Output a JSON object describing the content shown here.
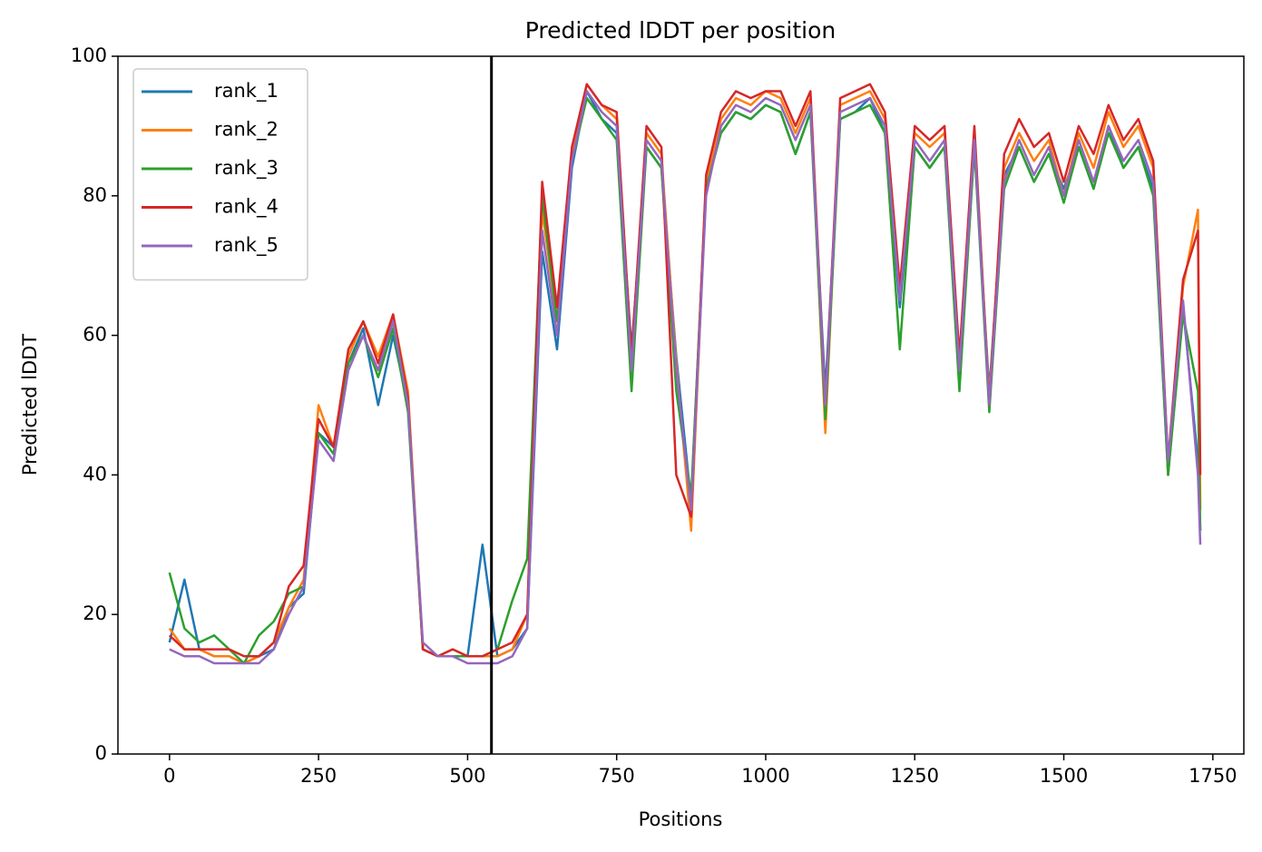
{
  "chart_data": {
    "type": "line",
    "title": "Predicted lDDT per position",
    "xlabel": "Positions",
    "ylabel": "Predicted lDDT",
    "x": [
      0,
      25,
      50,
      75,
      100,
      125,
      150,
      175,
      200,
      225,
      250,
      275,
      300,
      325,
      350,
      375,
      400,
      425,
      450,
      475,
      500,
      525,
      550,
      575,
      600,
      625,
      650,
      675,
      700,
      725,
      750,
      775,
      800,
      825,
      850,
      875,
      900,
      925,
      950,
      975,
      1000,
      1025,
      1050,
      1075,
      1100,
      1125,
      1150,
      1175,
      1200,
      1225,
      1250,
      1275,
      1300,
      1325,
      1350,
      1375,
      1400,
      1425,
      1450,
      1475,
      1500,
      1525,
      1550,
      1575,
      1600,
      1625,
      1650,
      1675,
      1700,
      1725,
      1729
    ],
    "series": [
      {
        "name": "rank_1",
        "color": "#1f77b4",
        "values": [
          16,
          25,
          15,
          14,
          14,
          13,
          14,
          15,
          21,
          23,
          46,
          44,
          56,
          61,
          50,
          60,
          50,
          15,
          14,
          14,
          14,
          30,
          14,
          15,
          18,
          72,
          58,
          84,
          95,
          91,
          89,
          58,
          87,
          84,
          57,
          36,
          82,
          89,
          92,
          91,
          93,
          92,
          86,
          92,
          52,
          91,
          92,
          94,
          89,
          64,
          87,
          84,
          87,
          56,
          87,
          52,
          83,
          87,
          82,
          86,
          81,
          87,
          81,
          90,
          84,
          87,
          81,
          40,
          64,
          42,
          32
        ]
      },
      {
        "name": "rank_2",
        "color": "#ff7f0e",
        "values": [
          18,
          15,
          15,
          14,
          14,
          13,
          14,
          16,
          21,
          25,
          50,
          44,
          57,
          62,
          57,
          63,
          52,
          15,
          14,
          15,
          14,
          14,
          14,
          15,
          20,
          78,
          62,
          86,
          96,
          93,
          91,
          56,
          89,
          86,
          56,
          32,
          82,
          91,
          94,
          93,
          95,
          94,
          89,
          94,
          46,
          93,
          94,
          95,
          91,
          66,
          89,
          87,
          89,
          56,
          89,
          51,
          84,
          89,
          85,
          88,
          80,
          89,
          84,
          92,
          87,
          90,
          84,
          40,
          67,
          78,
          35
        ]
      },
      {
        "name": "rank_3",
        "color": "#2ca02c",
        "values": [
          26,
          18,
          16,
          17,
          15,
          13,
          17,
          19,
          23,
          24,
          46,
          43,
          56,
          60,
          54,
          61,
          49,
          15,
          14,
          14,
          14,
          14,
          15,
          22,
          28,
          80,
          62,
          85,
          94,
          91,
          88,
          52,
          87,
          84,
          52,
          37,
          81,
          89,
          92,
          91,
          93,
          92,
          86,
          92,
          48,
          91,
          92,
          93,
          89,
          58,
          87,
          84,
          87,
          52,
          87,
          49,
          81,
          87,
          82,
          86,
          79,
          87,
          81,
          89,
          84,
          87,
          80,
          40,
          63,
          52,
          32
        ]
      },
      {
        "name": "rank_4",
        "color": "#d62728",
        "values": [
          17,
          15,
          15,
          15,
          15,
          14,
          14,
          16,
          24,
          27,
          48,
          44,
          58,
          62,
          56,
          63,
          51,
          15,
          14,
          15,
          14,
          14,
          15,
          16,
          20,
          82,
          64,
          87,
          96,
          93,
          92,
          57,
          90,
          87,
          40,
          34,
          83,
          92,
          95,
          94,
          95,
          95,
          90,
          95,
          50,
          94,
          95,
          96,
          92,
          67,
          90,
          88,
          90,
          57,
          90,
          50,
          86,
          91,
          87,
          89,
          82,
          90,
          86,
          93,
          88,
          91,
          85,
          42,
          68,
          75,
          40
        ]
      },
      {
        "name": "rank_5",
        "color": "#9467bd",
        "values": [
          15,
          14,
          14,
          13,
          13,
          13,
          13,
          15,
          20,
          24,
          45,
          42,
          55,
          60,
          55,
          62,
          50,
          16,
          14,
          14,
          13,
          13,
          13,
          14,
          18,
          75,
          60,
          85,
          95,
          92,
          90,
          55,
          88,
          85,
          55,
          35,
          80,
          90,
          93,
          92,
          94,
          93,
          88,
          93,
          50,
          92,
          93,
          94,
          90,
          65,
          88,
          85,
          88,
          55,
          88,
          50,
          82,
          88,
          83,
          87,
          80,
          88,
          82,
          90,
          85,
          88,
          82,
          42,
          65,
          40,
          30
        ]
      }
    ],
    "vline": 540,
    "vline_color": "#000000",
    "xlim": [
      -86.5,
      1802
    ],
    "ylim": [
      0,
      100
    ],
    "xticks": [
      0,
      250,
      500,
      750,
      1000,
      1250,
      1500,
      1750
    ],
    "yticks": [
      0,
      20,
      40,
      60,
      80,
      100
    ],
    "legend": "upper left"
  }
}
